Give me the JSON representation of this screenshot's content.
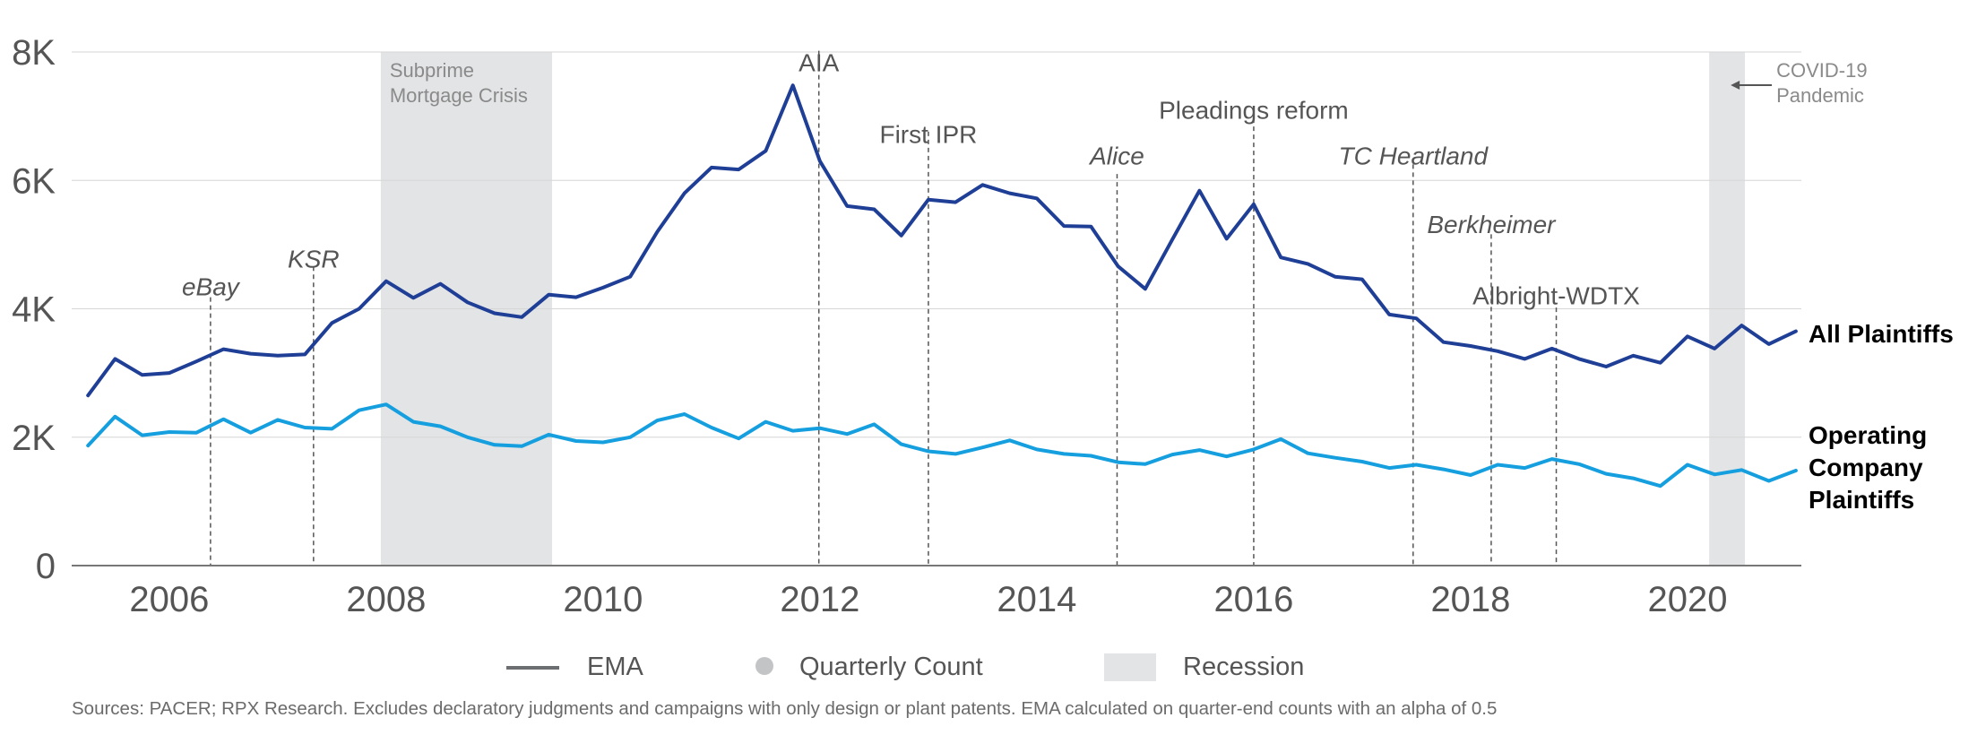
{
  "chart_data": {
    "type": "line",
    "y_ticks": [
      {
        "value": 0,
        "label": "0"
      },
      {
        "value": 2000,
        "label": "2K"
      },
      {
        "value": 4000,
        "label": "4K"
      },
      {
        "value": 6000,
        "label": "6K"
      },
      {
        "value": 8000,
        "label": "8K"
      }
    ],
    "ylim": [
      0,
      8000
    ],
    "xlim": [
      2005.1,
      2021.05
    ],
    "x_ticks": [
      2006,
      2008,
      2010,
      2012,
      2014,
      2016,
      2018,
      2020
    ],
    "grid": "horizontal",
    "series": [
      {
        "name": "All Plaintiffs",
        "color": "#1f3e96",
        "x": [
          2005.25,
          2005.5,
          2005.75,
          2006.0,
          2006.25,
          2006.5,
          2006.75,
          2007.0,
          2007.25,
          2007.5,
          2007.75,
          2008.0,
          2008.25,
          2008.5,
          2008.75,
          2009.0,
          2009.25,
          2009.5,
          2009.75,
          2010.0,
          2010.25,
          2010.5,
          2010.75,
          2011.0,
          2011.25,
          2011.5,
          2011.75,
          2012.0,
          2012.25,
          2012.5,
          2012.75,
          2013.0,
          2013.25,
          2013.5,
          2013.75,
          2014.0,
          2014.25,
          2014.5,
          2014.75,
          2015.0,
          2015.25,
          2015.5,
          2015.75,
          2016.0,
          2016.25,
          2016.5,
          2016.75,
          2017.0,
          2017.25,
          2017.5,
          2017.75,
          2018.0,
          2018.25,
          2018.5,
          2018.75,
          2019.0,
          2019.25,
          2019.5,
          2019.75,
          2020.0,
          2020.25,
          2020.5,
          2020.75,
          2021.0
        ],
        "values": [
          2650,
          3220,
          2970,
          3000,
          3180,
          3370,
          3300,
          3270,
          3290,
          3780,
          4000,
          4430,
          4170,
          4390,
          4100,
          3930,
          3870,
          4220,
          4180,
          4330,
          4500,
          5200,
          5800,
          6200,
          6170,
          6460,
          7480,
          6300,
          5600,
          5550,
          5140,
          5700,
          5660,
          5930,
          5800,
          5720,
          5290,
          5280,
          4660,
          4310,
          5080,
          5840,
          5090,
          5630,
          4800,
          4700,
          4500,
          4460,
          3910,
          3850,
          3480,
          3420,
          3340,
          3220,
          3380,
          3220,
          3100,
          3270,
          3160,
          3570,
          3380,
          3740,
          3450,
          3650
        ]
      },
      {
        "name": "Operating Company Plaintiffs",
        "color": "#159fdf",
        "x": [
          2005.25,
          2005.5,
          2005.75,
          2006.0,
          2006.25,
          2006.5,
          2006.75,
          2007.0,
          2007.25,
          2007.5,
          2007.75,
          2008.0,
          2008.25,
          2008.5,
          2008.75,
          2009.0,
          2009.25,
          2009.5,
          2009.75,
          2010.0,
          2010.25,
          2010.5,
          2010.75,
          2011.0,
          2011.25,
          2011.5,
          2011.75,
          2012.0,
          2012.25,
          2012.5,
          2012.75,
          2013.0,
          2013.25,
          2013.5,
          2013.75,
          2014.0,
          2014.25,
          2014.5,
          2014.75,
          2015.0,
          2015.25,
          2015.5,
          2015.75,
          2016.0,
          2016.25,
          2016.5,
          2016.75,
          2017.0,
          2017.25,
          2017.5,
          2017.75,
          2018.0,
          2018.25,
          2018.5,
          2018.75,
          2019.0,
          2019.25,
          2019.5,
          2019.75,
          2020.0,
          2020.25,
          2020.5,
          2020.75,
          2021.0
        ],
        "values": [
          1870,
          2320,
          2030,
          2080,
          2070,
          2280,
          2070,
          2270,
          2150,
          2130,
          2420,
          2510,
          2240,
          2170,
          2000,
          1880,
          1860,
          2040,
          1940,
          1920,
          2000,
          2260,
          2360,
          2150,
          1980,
          2240,
          2100,
          2140,
          2050,
          2200,
          1890,
          1780,
          1740,
          1840,
          1950,
          1810,
          1740,
          1710,
          1610,
          1580,
          1730,
          1800,
          1700,
          1810,
          1970,
          1750,
          1680,
          1620,
          1520,
          1570,
          1500,
          1410,
          1570,
          1520,
          1660,
          1580,
          1430,
          1360,
          1240,
          1570,
          1420,
          1490,
          1320,
          1480
        ]
      }
    ],
    "recessions": [
      {
        "start": 2007.95,
        "end": 2009.53,
        "label_lines": [
          "Subprime",
          "Mortgage Crisis"
        ]
      },
      {
        "start": 2020.2,
        "end": 2020.53,
        "label_lines": [
          "COVID-19",
          "Pandemic"
        ]
      }
    ],
    "events": [
      {
        "x": 2006.38,
        "label": "eBay",
        "italic": true,
        "label_value": 4210,
        "line_top": 4180
      },
      {
        "x": 2007.33,
        "label": "KSR",
        "italic": true,
        "label_value": 4640,
        "line_top": 4660
      },
      {
        "x": 2011.99,
        "label": "AIA",
        "italic": false,
        "label_value": 7700,
        "line_top": 8020
      },
      {
        "x": 2013.0,
        "label": "First IPR",
        "italic": false,
        "label_value": 6580,
        "line_top": 6760
      },
      {
        "x": 2014.74,
        "label": "Alice",
        "italic": true,
        "label_value": 6250,
        "line_top": 6100
      },
      {
        "x": 2016.0,
        "label": "Pleadings reform",
        "italic": false,
        "label_value": 6960,
        "line_top": 7090
      },
      {
        "x": 2017.47,
        "label": "TC Heartland",
        "italic": true,
        "label_value": 6250,
        "line_top": 6250
      },
      {
        "x": 2018.19,
        "label": "Berkheimer",
        "italic": true,
        "label_value": 5180,
        "line_top": 5160
      },
      {
        "x": 2018.79,
        "label": "Albright-WDTX",
        "italic": false,
        "label_value": 4070,
        "line_top": 4020
      }
    ],
    "legend": {
      "position": "bottom",
      "items": [
        {
          "label": "EMA",
          "symbol": "line",
          "color": "#6d6e71"
        },
        {
          "label": "Quarterly Count",
          "symbol": "dot",
          "color": "#c2c4c6"
        },
        {
          "label": "Recession",
          "symbol": "box",
          "color": "#e3e4e6"
        }
      ]
    },
    "series_labels": {
      "all": [
        "All Plaintiffs"
      ],
      "operating": [
        "Operating",
        "Company",
        "Plaintiffs"
      ]
    },
    "source_note": "Sources: PACER; RPX Research. Excludes declaratory judgments and campaigns with only design or plant patents. EMA calculated on quarter-end counts with an alpha of 0.5",
    "colors": {
      "grid": "#d6d6d6",
      "axis": "#555555",
      "tick_text": "#555555",
      "annotation_text": "#555555",
      "recession_fill": "#e3e4e6",
      "event_line": "#555555"
    }
  }
}
